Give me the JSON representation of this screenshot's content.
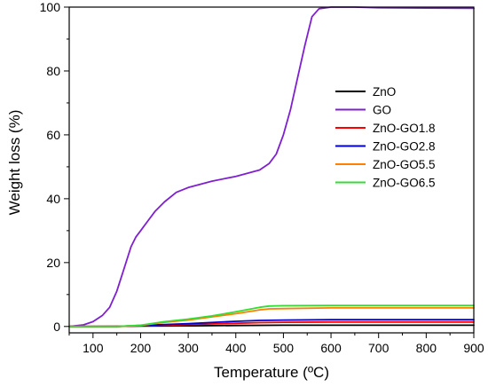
{
  "chart_data": {
    "type": "line",
    "xlabel": "Temperature (ºC)",
    "ylabel": "Weight loss (%)",
    "xlim": [
      50,
      900
    ],
    "ylim": [
      -2,
      100
    ],
    "x_ticks": [
      100,
      200,
      300,
      400,
      500,
      600,
      700,
      800,
      900
    ],
    "y_ticks": [
      0,
      20,
      40,
      60,
      80,
      100
    ],
    "x_tick_labels": [
      "100",
      "200",
      "300",
      "400",
      "500",
      "600",
      "700",
      "800",
      "900"
    ],
    "y_tick_labels": [
      "0",
      "20",
      "40",
      "60",
      "80",
      "100"
    ],
    "grid": false,
    "legend_position": "center-right",
    "series": [
      {
        "name": "ZnO",
        "color": "#000000",
        "x": [
          50,
          100,
          200,
          300,
          400,
          500,
          600,
          700,
          800,
          900
        ],
        "y": [
          0,
          0,
          0.1,
          0.2,
          0.3,
          0.4,
          0.4,
          0.4,
          0.4,
          0.4
        ]
      },
      {
        "name": "GO",
        "color": "#7F1FD0",
        "x": [
          50,
          80,
          100,
          120,
          135,
          150,
          165,
          180,
          190,
          200,
          215,
          230,
          250,
          275,
          300,
          350,
          400,
          450,
          470,
          485,
          500,
          515,
          530,
          545,
          560,
          575,
          600,
          650,
          700,
          800,
          900
        ],
        "y": [
          0,
          0.5,
          1.5,
          3.5,
          6,
          11,
          18,
          25,
          28,
          30,
          33,
          36,
          39,
          42,
          43.5,
          45.5,
          47,
          49,
          51,
          54,
          60,
          68,
          78,
          88,
          97,
          99.5,
          100,
          100,
          99.8,
          99.7,
          99.6
        ]
      },
      {
        "name": "ZnO-GO1.8",
        "color": "#FF0000",
        "x": [
          50,
          150,
          200,
          300,
          400,
          450,
          500,
          600,
          700,
          800,
          900
        ],
        "y": [
          0,
          0,
          0.2,
          0.6,
          1.0,
          1.2,
          1.3,
          1.4,
          1.4,
          1.4,
          1.4
        ]
      },
      {
        "name": "ZnO-GO2.8",
        "color": "#0000CC",
        "x": [
          50,
          150,
          200,
          300,
          400,
          450,
          500,
          600,
          700,
          800,
          900
        ],
        "y": [
          0,
          0,
          0.3,
          0.9,
          1.6,
          1.9,
          2.0,
          2.1,
          2.1,
          2.1,
          2.1
        ]
      },
      {
        "name": "ZnO-GO5.5",
        "color": "#FF8000",
        "x": [
          50,
          150,
          200,
          250,
          300,
          350,
          400,
          450,
          470,
          500,
          600,
          700,
          800,
          900
        ],
        "y": [
          0,
          0,
          0.3,
          1.3,
          2.0,
          3.0,
          4.0,
          5.2,
          5.5,
          5.6,
          5.8,
          5.8,
          5.8,
          5.8
        ]
      },
      {
        "name": "ZnO-GO6.5",
        "color": "#33DD33",
        "x": [
          50,
          150,
          200,
          250,
          300,
          350,
          400,
          450,
          470,
          500,
          600,
          700,
          800,
          900
        ],
        "y": [
          0,
          0,
          0.4,
          1.5,
          2.3,
          3.3,
          4.6,
          6.0,
          6.4,
          6.5,
          6.6,
          6.6,
          6.6,
          6.6
        ]
      }
    ]
  }
}
